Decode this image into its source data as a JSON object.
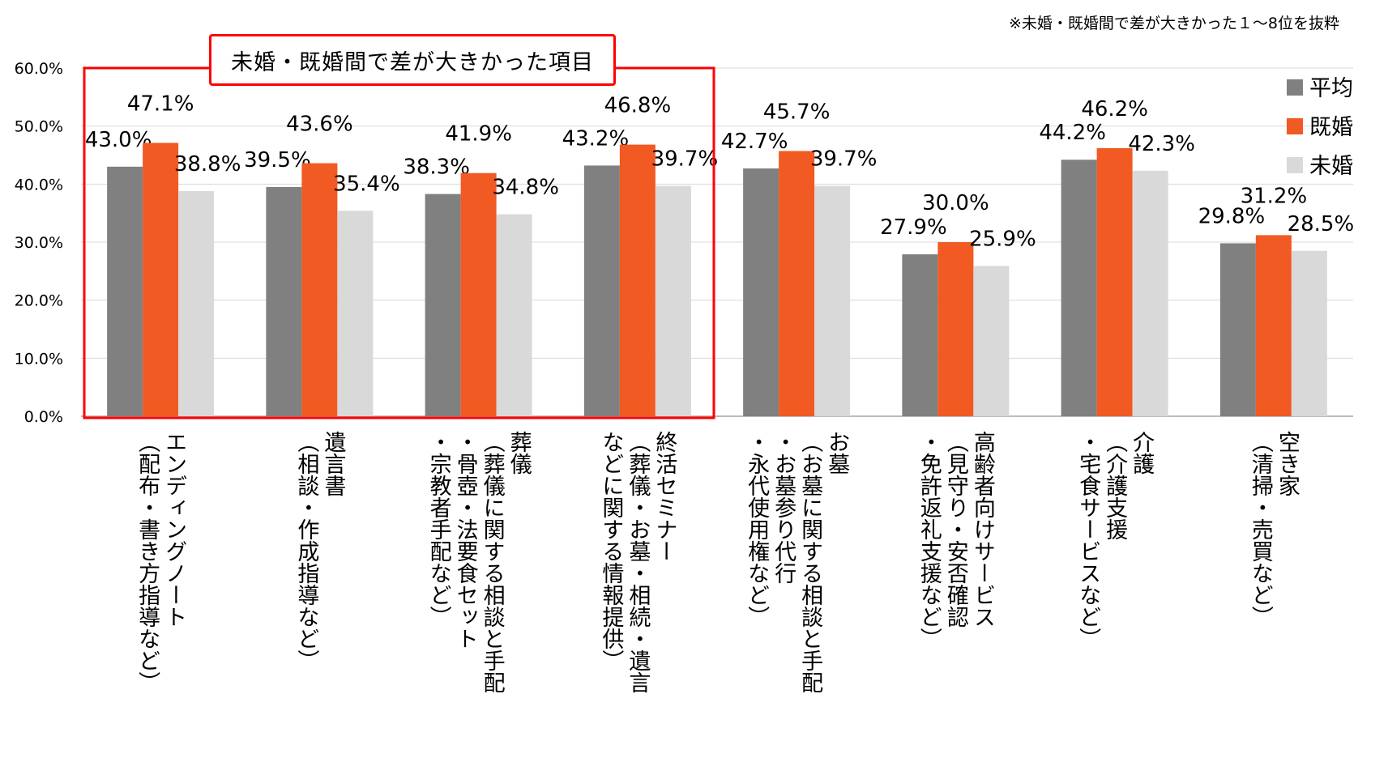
{
  "note": "※未婚・既婚間で差が大きかった１～8位を抜粋",
  "callout": "未婚・既婚間で差が大きかった項目",
  "chart_data": {
    "type": "bar",
    "yticks": [
      "0.0%",
      "10.0%",
      "20.0%",
      "30.0%",
      "40.0%",
      "50.0%",
      "60.0%"
    ],
    "ylim": [
      0,
      60
    ],
    "grid": true,
    "legend_position": "top-right",
    "categories": [
      {
        "lines": [
          "エンディングノート",
          "（配布・書き方指導など）"
        ]
      },
      {
        "lines": [
          "遺言書",
          "（相談・作成指導など）"
        ]
      },
      {
        "lines": [
          "葬儀",
          "（葬儀に関する相談と手配",
          "・骨壺・法要食セット",
          "・宗教者手配など）"
        ]
      },
      {
        "lines": [
          "終活セミナー",
          "（葬儀・お墓・相続・遺言",
          "などに関する情報提供）"
        ]
      },
      {
        "lines": [
          "お墓",
          "（お墓に関する相談と手配",
          "・お墓参り代行",
          "・永代使用権など）"
        ]
      },
      {
        "lines": [
          "高齢者向けサービス",
          "（見守り・安否確認",
          "・免許返礼支援など）"
        ]
      },
      {
        "lines": [
          "介護",
          "（介護支援",
          "・宅食サービスなど）"
        ]
      },
      {
        "lines": [
          "空き家",
          "（清掃・売買など）"
        ]
      }
    ],
    "series": [
      {
        "name": "平均",
        "color": "#808080",
        "values": [
          43.0,
          39.5,
          38.3,
          43.2,
          42.7,
          27.9,
          44.2,
          29.8
        ],
        "labels": [
          "43.0%",
          "39.5%",
          "38.3%",
          "43.2%",
          "42.7%",
          "27.9%",
          "44.2%",
          "29.8%"
        ]
      },
      {
        "name": "既婚",
        "color": "#f15a22",
        "values": [
          47.1,
          43.6,
          41.9,
          46.8,
          45.7,
          30.0,
          46.2,
          31.2
        ],
        "labels": [
          "47.1%",
          "43.6%",
          "41.9%",
          "46.8%",
          "45.7%",
          "30.0%",
          "46.2%",
          "31.2%"
        ]
      },
      {
        "name": "未婚",
        "color": "#d9d9d9",
        "values": [
          38.8,
          35.4,
          34.8,
          39.7,
          39.7,
          25.9,
          42.3,
          28.5
        ],
        "labels": [
          "38.8%",
          "35.4%",
          "34.8%",
          "39.7%",
          "39.7%",
          "25.9%",
          "42.3%",
          "28.5%"
        ]
      }
    ],
    "highlight": {
      "color": "#ff0000",
      "first_category": 0,
      "last_category": 3
    }
  }
}
